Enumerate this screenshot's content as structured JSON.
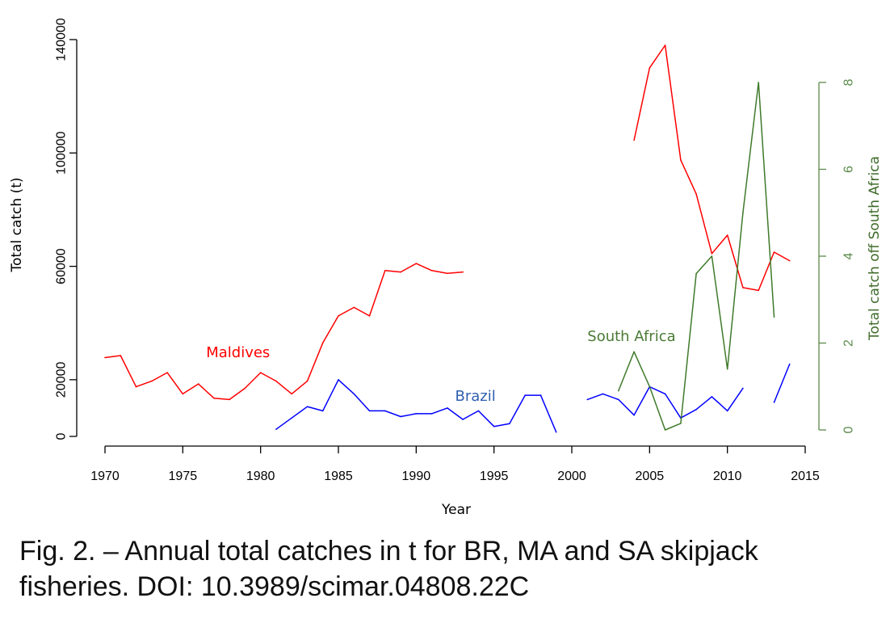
{
  "chart_data": {
    "type": "line",
    "xlabel": "Year",
    "ylabel": "Total catch (t)",
    "y2label": "Total catch off South Africa",
    "xlim": [
      1970,
      2015
    ],
    "ylim": [
      0,
      140000
    ],
    "y2lim": [
      0,
      8
    ],
    "x_ticks": [
      1970,
      1975,
      1980,
      1985,
      1990,
      1995,
      2000,
      2005,
      2010,
      2015
    ],
    "y_ticks": [
      0,
      20000,
      60000,
      100000,
      140000
    ],
    "y2_ticks": [
      0,
      2,
      4,
      6,
      8
    ],
    "series": [
      {
        "name": "Maldives",
        "axis": "left",
        "color": "#ff0000",
        "segments": [
          {
            "x": [
              1970,
              1971,
              1972,
              1973,
              1974,
              1975,
              1976,
              1977,
              1978,
              1979,
              1980,
              1981,
              1982,
              1983,
              1984,
              1985,
              1986,
              1987,
              1988,
              1989,
              1990,
              1991,
              1992,
              1993
            ],
            "y": [
              27800,
              28500,
              17500,
              19500,
              22500,
              15000,
              18500,
              13500,
              13000,
              17000,
              22500,
              19500,
              15000,
              19500,
              33000,
              42500,
              45500,
              42500,
              58500,
              58000,
              61000,
              58500,
              57500,
              58000
            ]
          },
          {
            "x": [
              2004,
              2005,
              2006,
              2007,
              2008,
              2009,
              2010,
              2011,
              2012,
              2013,
              2014
            ],
            "y": [
              104500,
              130000,
              138000,
              97500,
              85500,
              64500,
              71000,
              52500,
              51500,
              65000,
              62000
            ]
          }
        ]
      },
      {
        "name": "Brazil",
        "axis": "left",
        "color": "#0000ff",
        "segments": [
          {
            "x": [
              1981,
              1982,
              1983,
              1984,
              1985,
              1986,
              1987,
              1988,
              1989,
              1990,
              1991,
              1992,
              1993,
              1994,
              1995,
              1996,
              1997,
              1998,
              1999
            ],
            "y": [
              2500,
              6500,
              10500,
              9000,
              20000,
              15000,
              9000,
              9000,
              7000,
              8000,
              8000,
              10000,
              6000,
              9000,
              3500,
              4500,
              14500,
              14500,
              1500
            ]
          },
          {
            "x": [
              2001,
              2002,
              2003,
              2004,
              2005,
              2006,
              2007,
              2008,
              2009,
              2010,
              2011
            ],
            "y": [
              13000,
              15000,
              13000,
              7500,
              17500,
              15000,
              6500,
              9500,
              14000,
              9000,
              17000
            ]
          },
          {
            "x": [
              2013,
              2014
            ],
            "y": [
              12000,
              25500
            ]
          }
        ]
      },
      {
        "name": "South Africa",
        "axis": "right",
        "color": "#3f7a2a",
        "segments": [
          {
            "x": [
              2003,
              2004,
              2005,
              2006,
              2007,
              2008,
              2009,
              2010,
              2011,
              2012,
              2013
            ],
            "y": [
              0.9,
              1.8,
              1.0,
              0.0,
              0.15,
              3.6,
              4.0,
              1.4,
              5.0,
              8.0,
              2.6
            ]
          }
        ]
      }
    ],
    "annotations": [
      {
        "text": "Maldives",
        "series": "Maldives",
        "x": 1976.5,
        "y": 28000
      },
      {
        "text": "Brazil",
        "series": "Brazil",
        "x": 1992.5,
        "y": 12500
      },
      {
        "text": "South Africa",
        "series": "South Africa",
        "x": 2001,
        "y": 2.05
      }
    ]
  },
  "caption": {
    "line1": "Fig. 2. – Annual total catches in t for BR, MA and SA skipjack",
    "line2": "fisheries. DOI: 10.3989/scimar.04808.22C"
  }
}
